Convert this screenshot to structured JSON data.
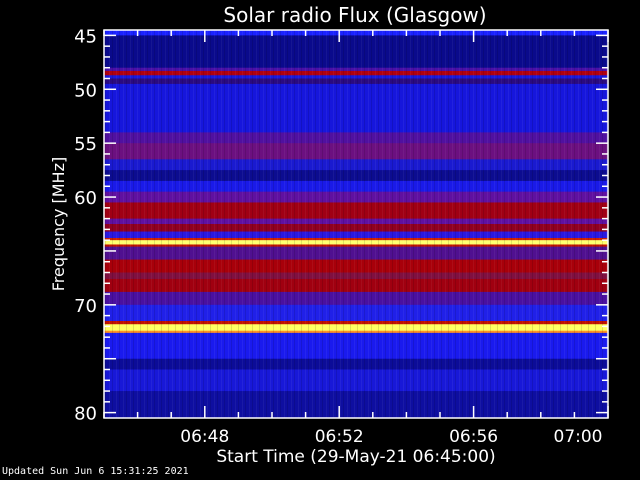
{
  "chart_data": {
    "type": "heatmap",
    "title": "Solar radio Flux (Glasgow)",
    "xlabel": "Start Time (29-May-21 06:45:00)",
    "ylabel": "Frequency [MHz]",
    "xlim": [
      "06:45",
      "07:00"
    ],
    "ylim": [
      80.5,
      44.5
    ],
    "x_ticks": [
      "06:48",
      "06:52",
      "06:56",
      "07:00"
    ],
    "y_ticks": [
      "45",
      "50",
      "55",
      "60",
      "65",
      "70",
      "75",
      "80"
    ],
    "y_tick_labels_shown": [
      "45",
      "50",
      "55",
      "60",
      "70",
      "80"
    ],
    "colormap": "black-blue-red-yellow",
    "frequency_bands": [
      {
        "from": 44.5,
        "to": 45.0,
        "color": "#1a22ff"
      },
      {
        "from": 45.0,
        "to": 48.0,
        "color": "#0a0a8c"
      },
      {
        "from": 48.0,
        "to": 48.3,
        "color": "#4a10a8"
      },
      {
        "from": 48.3,
        "to": 48.7,
        "color": "#b00010"
      },
      {
        "from": 48.7,
        "to": 49.0,
        "color": "#1818e0"
      },
      {
        "from": 49.0,
        "to": 49.5,
        "color": "#2a0a80"
      },
      {
        "from": 49.5,
        "to": 54.0,
        "color": "#1616dc"
      },
      {
        "from": 54.0,
        "to": 55.0,
        "color": "#5010a0"
      },
      {
        "from": 55.0,
        "to": 56.5,
        "color": "#6c1080"
      },
      {
        "from": 56.5,
        "to": 57.5,
        "color": "#1a1ad0"
      },
      {
        "from": 57.5,
        "to": 58.5,
        "color": "#0c0c90"
      },
      {
        "from": 58.5,
        "to": 59.5,
        "color": "#1a1ae8"
      },
      {
        "from": 59.5,
        "to": 60.5,
        "color": "#6010a0"
      },
      {
        "from": 60.5,
        "to": 62.0,
        "color": "#a00014"
      },
      {
        "from": 62.0,
        "to": 62.5,
        "color": "#6010a0"
      },
      {
        "from": 62.5,
        "to": 63.2,
        "color": "#900020"
      },
      {
        "from": 63.2,
        "to": 63.8,
        "color": "#2a18e0"
      },
      {
        "from": 63.8,
        "to": 64.0,
        "color": "#d02000"
      },
      {
        "from": 64.0,
        "to": 64.4,
        "color": "#ffff70"
      },
      {
        "from": 64.4,
        "to": 64.6,
        "color": "#c01000"
      },
      {
        "from": 64.6,
        "to": 65.8,
        "color": "#501090"
      },
      {
        "from": 65.8,
        "to": 67.0,
        "color": "#a8000a"
      },
      {
        "from": 67.0,
        "to": 67.6,
        "color": "#801040"
      },
      {
        "from": 67.6,
        "to": 68.8,
        "color": "#a00010"
      },
      {
        "from": 68.8,
        "to": 70.0,
        "color": "#4a10a0"
      },
      {
        "from": 70.0,
        "to": 71.5,
        "color": "#2020e8"
      },
      {
        "from": 71.5,
        "to": 71.8,
        "color": "#c01000"
      },
      {
        "from": 71.8,
        "to": 72.4,
        "color": "#ffff60"
      },
      {
        "from": 72.4,
        "to": 72.6,
        "color": "#ff9020"
      },
      {
        "from": 72.6,
        "to": 75.0,
        "color": "#1a1aee"
      },
      {
        "from": 75.0,
        "to": 76.0,
        "color": "#0c0c98"
      },
      {
        "from": 76.0,
        "to": 78.0,
        "color": "#1818d8"
      },
      {
        "from": 78.0,
        "to": 80.5,
        "color": "#0e0ea0"
      }
    ]
  },
  "footer": {
    "updated": "Updated Sun Jun  6 15:31:25 2021"
  }
}
